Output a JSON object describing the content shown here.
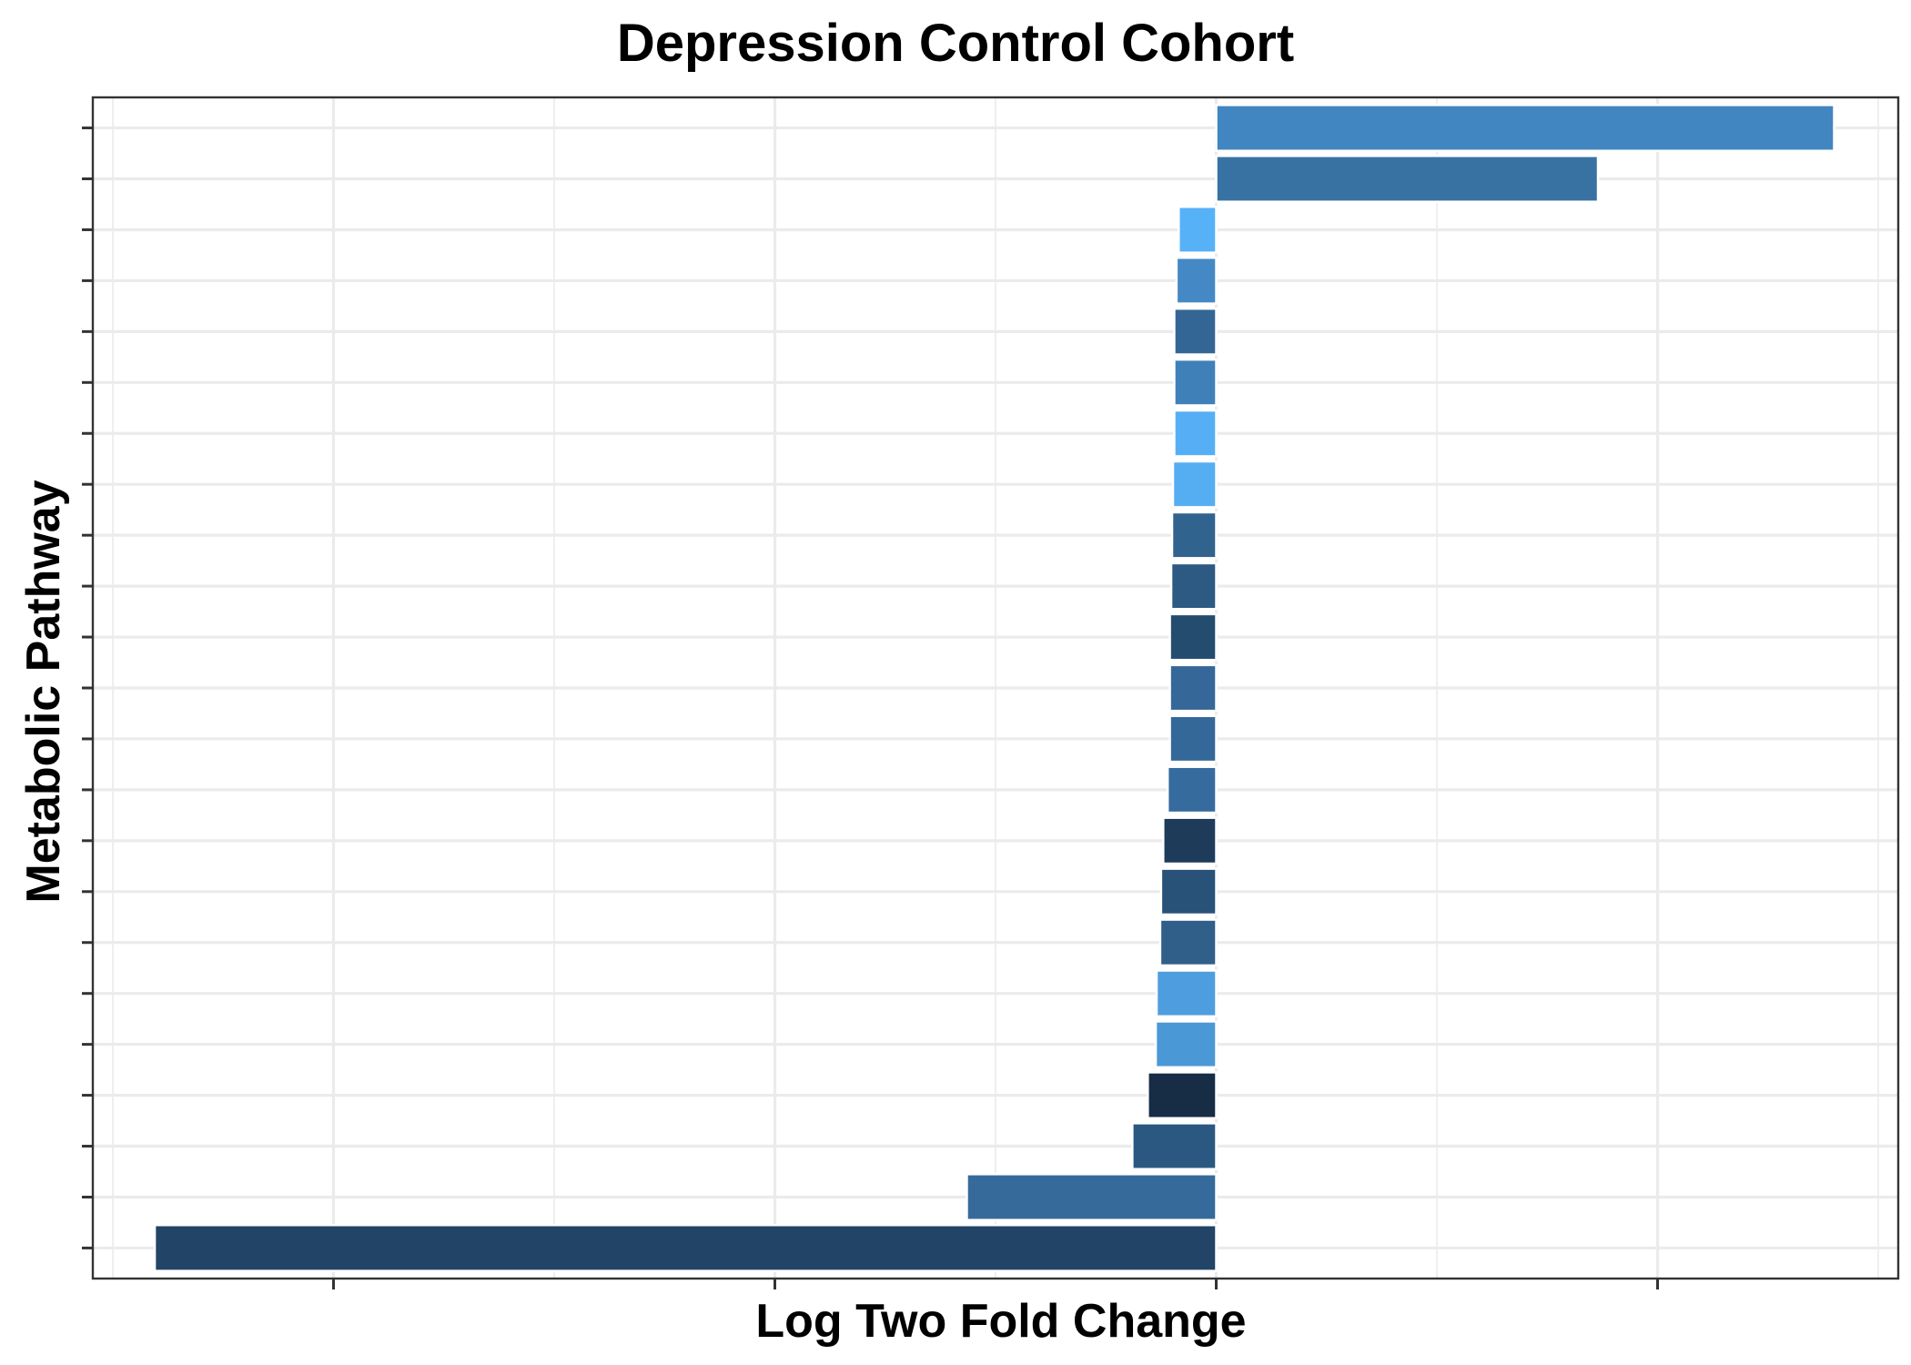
{
  "chart_data": {
    "type": "bar",
    "orientation": "horizontal",
    "title": "Depression Control Cohort",
    "xlabel": "Log Two Fold Change",
    "ylabel": "Metabolic Pathway",
    "xlim": [
      -2.5,
      1.5
    ],
    "x_tick_positions": [
      -2,
      -1,
      0,
      1
    ],
    "show_tick_labels": false,
    "grid": true,
    "legend": "none",
    "bars": [
      {
        "value": 1.4,
        "color": "#4186c1"
      },
      {
        "value": 0.865,
        "color": "#3872a2"
      },
      {
        "value": -0.085,
        "color": "#56b1f7"
      },
      {
        "value": -0.09,
        "color": "#4489c5"
      },
      {
        "value": -0.095,
        "color": "#336695"
      },
      {
        "value": -0.095,
        "color": "#3f80b9"
      },
      {
        "value": -0.095,
        "color": "#56aff4"
      },
      {
        "value": -0.098,
        "color": "#55aef2"
      },
      {
        "value": -0.1,
        "color": "#31638f"
      },
      {
        "value": -0.102,
        "color": "#2c5a83"
      },
      {
        "value": -0.105,
        "color": "#244c6e"
      },
      {
        "value": -0.105,
        "color": "#356899"
      },
      {
        "value": -0.105,
        "color": "#346898"
      },
      {
        "value": -0.11,
        "color": "#366c9d"
      },
      {
        "value": -0.12,
        "color": "#1e3b5a"
      },
      {
        "value": -0.125,
        "color": "#285277"
      },
      {
        "value": -0.127,
        "color": "#305f8a"
      },
      {
        "value": -0.135,
        "color": "#4e9edf"
      },
      {
        "value": -0.137,
        "color": "#4b98d6"
      },
      {
        "value": -0.155,
        "color": "#172c45"
      },
      {
        "value": -0.19,
        "color": "#2b5880"
      },
      {
        "value": -0.565,
        "color": "#356a9b"
      },
      {
        "value": -2.405,
        "color": "#224466"
      }
    ]
  }
}
